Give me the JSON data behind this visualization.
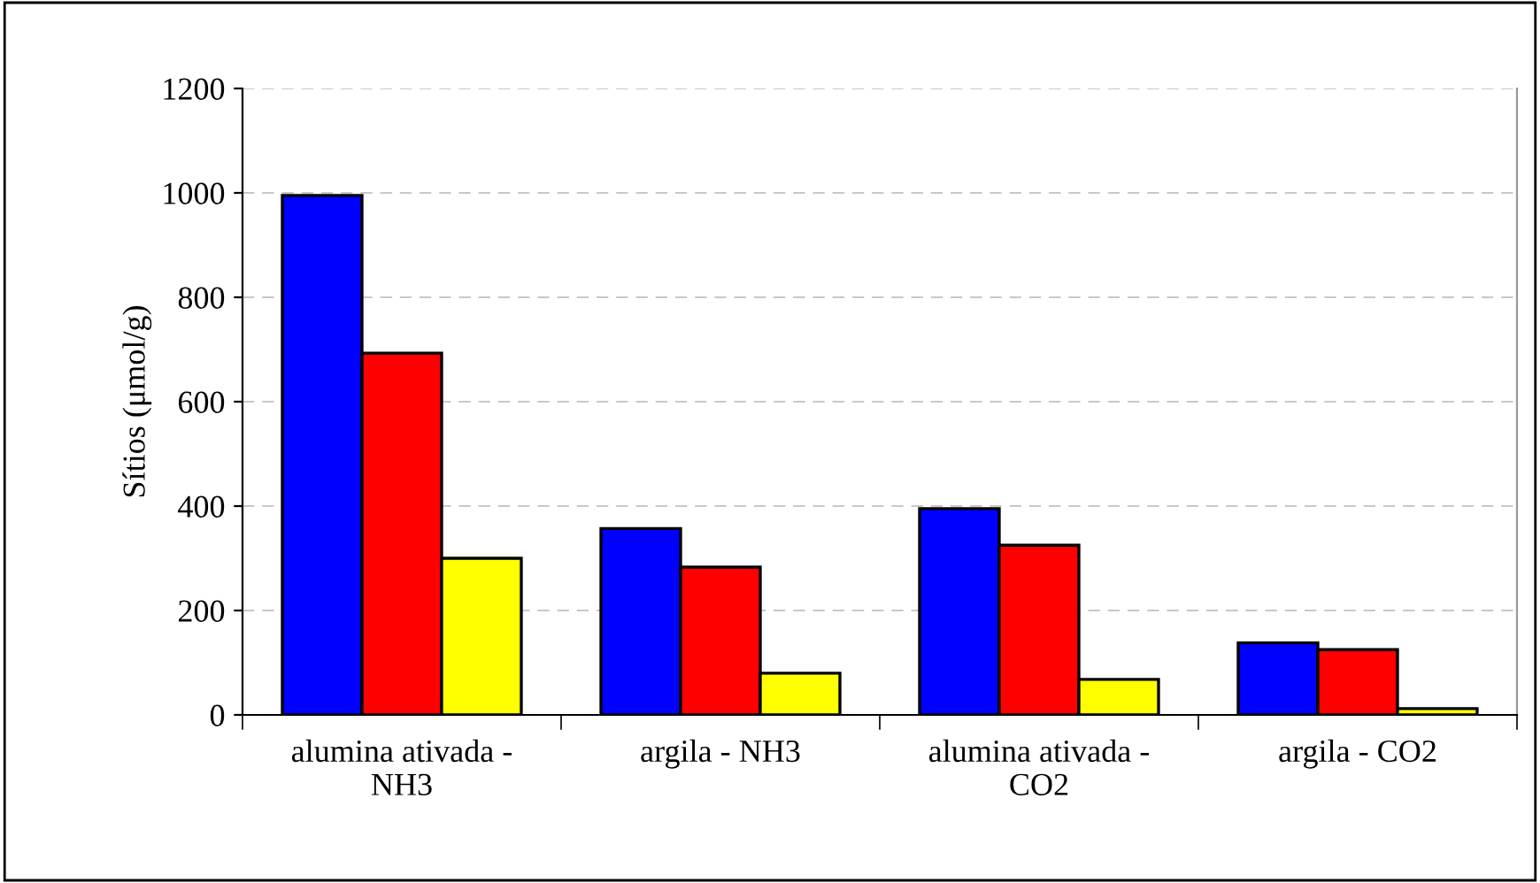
{
  "chart_data": {
    "type": "bar",
    "ylabel": "Sítios (μmol/g)",
    "categories": [
      "alumina ativada -\nNH3",
      "argila - NH3",
      "alumina ativada -\nCO2",
      "argila - CO2"
    ],
    "series": [
      {
        "color": "#0000ff",
        "values": [
          995,
          357,
          395,
          138
        ]
      },
      {
        "color": "#ff0000",
        "values": [
          693,
          283,
          325,
          125
        ]
      },
      {
        "color": "#ffff00",
        "values": [
          300,
          80,
          68,
          12
        ]
      }
    ],
    "ylim": [
      0,
      1200
    ],
    "yticks": [
      0,
      200,
      400,
      600,
      800,
      1000,
      1200
    ],
    "grid": "y",
    "legend": false
  }
}
